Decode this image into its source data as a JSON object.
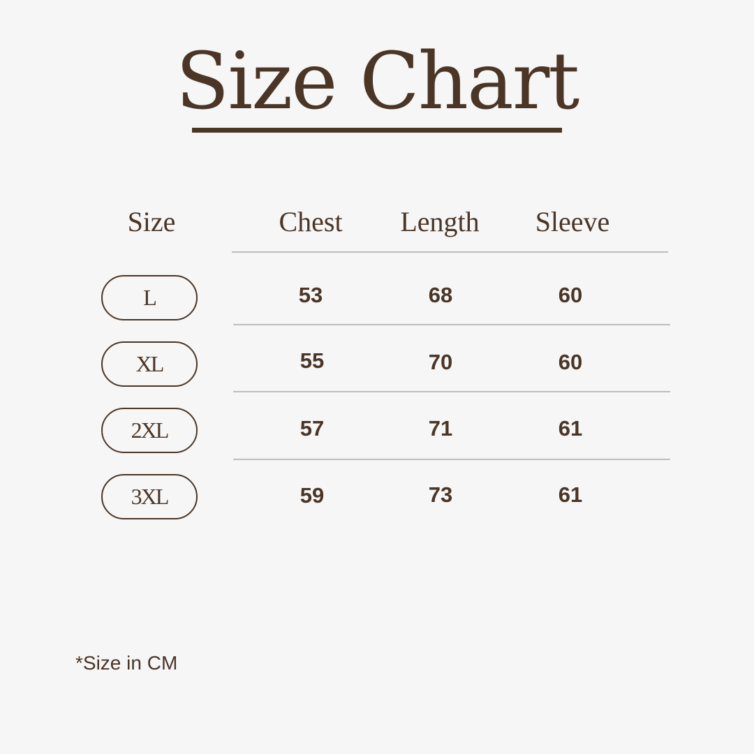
{
  "title": "Size Chart",
  "headers": [
    "Size",
    "Chest",
    "Length",
    "Sleeve"
  ],
  "rows": [
    {
      "size": "L",
      "chest": "53",
      "length": "68",
      "sleeve": "60"
    },
    {
      "size": "XL",
      "chest": "55",
      "length": "70",
      "sleeve": "60"
    },
    {
      "size": "2XL",
      "chest": "57",
      "length": "71",
      "sleeve": "61"
    },
    {
      "size": "3XL",
      "chest": "59",
      "length": "73",
      "sleeve": "61"
    }
  ],
  "footnote": "*Size in CM",
  "colors": {
    "text": "#4a3526",
    "background": "#f6f6f6",
    "rule": "#bdbdbd"
  }
}
